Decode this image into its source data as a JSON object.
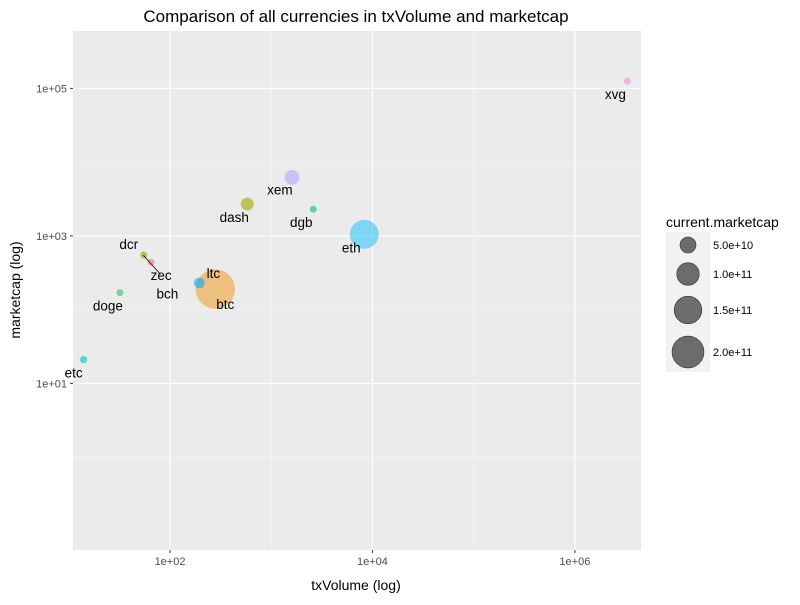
{
  "chart_data": {
    "type": "scatter",
    "subtype": "bubble",
    "title": "Comparison of all currencies in txVolume  and  marketcap",
    "xlabel": "txVolume (log)",
    "ylabel": "marketcap (log)",
    "x_scale": "log10",
    "y_scale": "log10",
    "xlim": [
      11,
      4500000
    ],
    "ylim": [
      0.055,
      600000
    ],
    "x_ticks": [
      {
        "value": 100,
        "label": "1e+02"
      },
      {
        "value": 10000,
        "label": "1e+04"
      },
      {
        "value": 1000000,
        "label": "1e+06"
      }
    ],
    "y_ticks": [
      {
        "value": 10,
        "label": "1e+01"
      },
      {
        "value": 1000,
        "label": "1e+03"
      },
      {
        "value": 100000,
        "label": "1e+05"
      }
    ],
    "grid": true,
    "legend": {
      "title": "current.marketcap",
      "position": "right",
      "entries": [
        {
          "value": 50000000000,
          "label": "5.0e+10"
        },
        {
          "value": 100000000000,
          "label": "1.0e+11"
        },
        {
          "value": 150000000000,
          "label": "1.5e+11"
        },
        {
          "value": 200000000000,
          "label": "2.0e+11"
        }
      ]
    },
    "points": [
      {
        "name": "xvg",
        "x": 3300000,
        "y": 125000,
        "size": 3000000000,
        "color": "#F78AE0"
      },
      {
        "name": "xem",
        "x": 1600,
        "y": 6200,
        "size": 25000000000,
        "color": "#B9A3F5"
      },
      {
        "name": "dash",
        "x": 580,
        "y": 2700,
        "size": 19000000000,
        "color": "#A3A500"
      },
      {
        "name": "dgb",
        "x": 2600,
        "y": 2300,
        "size": 3000000000,
        "color": "#00C08B"
      },
      {
        "name": "eth",
        "x": 8300,
        "y": 1050,
        "size": 95000000000,
        "color": "#35C8F7"
      },
      {
        "name": "dcr",
        "x": 55,
        "y": 550,
        "size": 3000000000,
        "color": "#7CAE00"
      },
      {
        "name": "zec",
        "x": 65,
        "y": 440,
        "size": 5000000000,
        "color": "#F8766D"
      },
      {
        "name": "bch",
        "x": 75,
        "y": 250,
        "size": 0,
        "color": "#E7861B"
      },
      {
        "name": "ltc",
        "x": 195,
        "y": 230,
        "size": 13000000000,
        "color": "#00A9FF"
      },
      {
        "name": "btc",
        "x": 280,
        "y": 190,
        "size": 175000000000,
        "color": "#F0A338"
      },
      {
        "name": "doge",
        "x": 32,
        "y": 170,
        "size": 3000000000,
        "color": "#2EC470"
      },
      {
        "name": "etc",
        "x": 14,
        "y": 21,
        "size": 6000000000,
        "color": "#00BFC4"
      }
    ]
  }
}
